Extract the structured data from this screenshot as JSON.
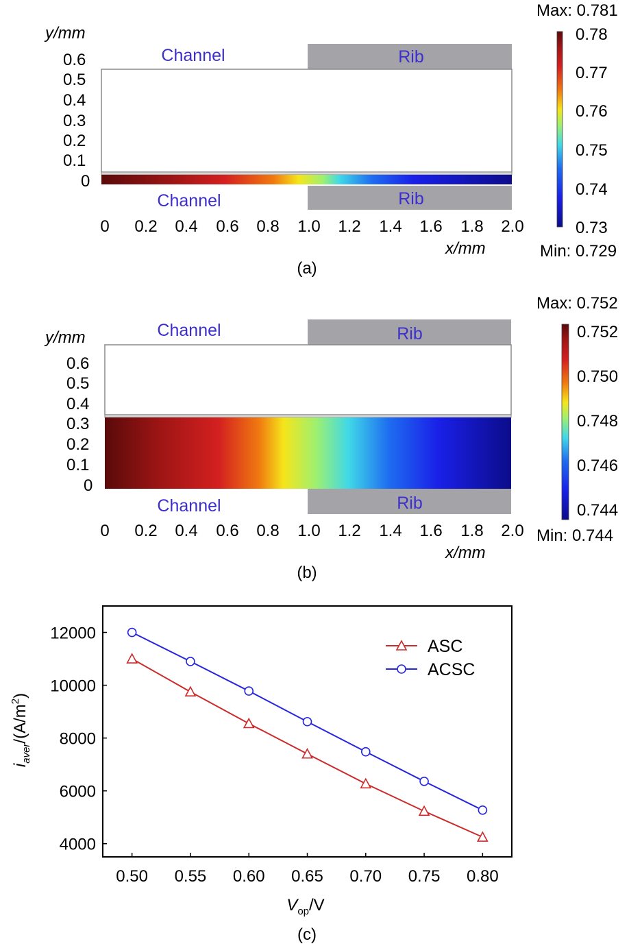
{
  "panels": [
    {
      "caption": "(a)",
      "y_axis_label": "y/mm",
      "x_axis_label": "x/mm",
      "y_ticks": [
        "0.6",
        "0.5",
        "0.4",
        "0.3",
        "0.2",
        "0.1",
        "0"
      ],
      "x_ticks": [
        "0",
        "0.2",
        "0.4",
        "0.6",
        "0.8",
        "1.0",
        "1.2",
        "1.4",
        "1.6",
        "1.8",
        "2.0"
      ],
      "zones": {
        "top_left": "Channel",
        "top_right": "Rib",
        "bottom_left": "Channel",
        "bottom_right": "Rib"
      },
      "colorbar": {
        "max_label": "Max: 0.781",
        "min_label": "Min: 0.729",
        "ticks": [
          "0.78",
          "0.77",
          "0.76",
          "0.75",
          "0.74",
          "0.73"
        ]
      }
    },
    {
      "caption": "(b)",
      "y_axis_label": "y/mm",
      "x_axis_label": "x/mm",
      "y_ticks": [
        "0.6",
        "0.5",
        "0.4",
        "0.3",
        "0.2",
        "0.1",
        "0"
      ],
      "x_ticks": [
        "0",
        "0.2",
        "0.4",
        "0.6",
        "0.8",
        "1.0",
        "1.2",
        "1.4",
        "1.6",
        "1.8",
        "2.0"
      ],
      "zones": {
        "top_left": "Channel",
        "top_right": "Rib",
        "bottom_left": "Channel",
        "bottom_right": "Rib"
      },
      "colorbar": {
        "max_label": "Max: 0.752",
        "min_label": "Min: 0.744",
        "ticks": [
          "0.752",
          "0.750",
          "0.748",
          "0.746",
          "0.744"
        ]
      }
    }
  ],
  "chart_data": {
    "type": "line",
    "caption": "(c)",
    "x": [
      0.5,
      0.55,
      0.6,
      0.65,
      0.7,
      0.75,
      0.8
    ],
    "x_tick_labels": [
      "0.50",
      "0.55",
      "0.60",
      "0.65",
      "0.70",
      "0.75",
      "0.80"
    ],
    "y_tick_labels": [
      "4000",
      "6000",
      "8000",
      "10000",
      "12000"
    ],
    "ylim": [
      3500,
      13000
    ],
    "xlim": [
      0.475,
      0.825
    ],
    "xlabel_main": "V",
    "xlabel_sub": "op",
    "xlabel_unit": "/V",
    "ylabel_main": "i",
    "ylabel_sub": "aver",
    "ylabel_unit": "/(A/m",
    "ylabel_sup": "2",
    "ylabel_close": ")",
    "legend_position": "top-right",
    "series": [
      {
        "name": "ASC",
        "marker": "triangle",
        "color": "#cc2b2b",
        "values": [
          11000,
          9750,
          8550,
          7400,
          6270,
          5230,
          4250
        ]
      },
      {
        "name": "ACSC",
        "marker": "circle",
        "color": "#2626e0",
        "values": [
          12000,
          10900,
          9780,
          8620,
          7480,
          6360,
          5270
        ]
      }
    ]
  }
}
